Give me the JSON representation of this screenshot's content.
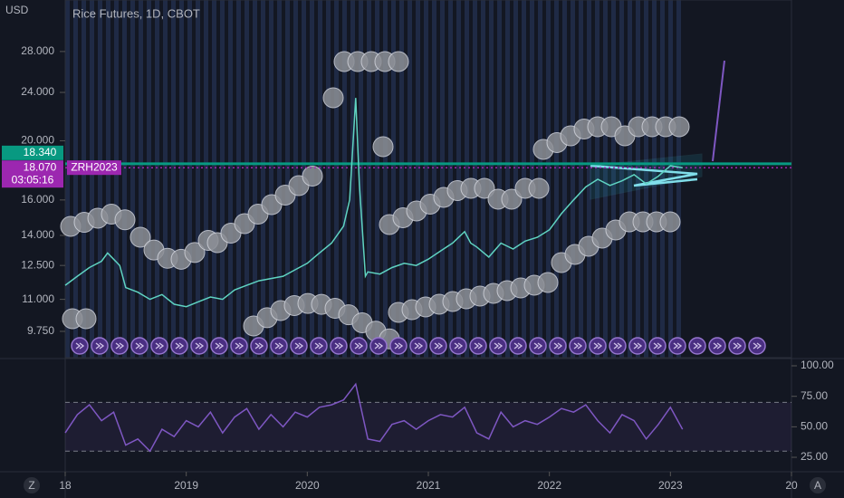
{
  "chart_data": [
    {
      "type": "line",
      "title": "Rice Futures, 1D, CBOT",
      "y_axis_label": "USD",
      "symbol": "ZRH2023",
      "countdown": "03:05:16",
      "log_scale": true,
      "color": "#5fd3c2",
      "x": [
        2018.0,
        2018.1,
        2018.2,
        2018.3,
        2018.35,
        2018.45,
        2018.5,
        2018.6,
        2018.7,
        2018.8,
        2018.9,
        2019.0,
        2019.1,
        2019.2,
        2019.3,
        2019.4,
        2019.5,
        2019.6,
        2019.7,
        2019.8,
        2019.9,
        2020.0,
        2020.1,
        2020.2,
        2020.3,
        2020.35,
        2020.4,
        2020.43,
        2020.45,
        2020.48,
        2020.5,
        2020.6,
        2020.7,
        2020.8,
        2020.9,
        2021.0,
        2021.1,
        2021.2,
        2021.3,
        2021.35,
        2021.4,
        2021.5,
        2021.6,
        2021.7,
        2021.8,
        2021.9,
        2022.0,
        2022.1,
        2022.2,
        2022.3,
        2022.4,
        2022.5,
        2022.6,
        2022.7,
        2022.8,
        2022.9,
        2023.0,
        2023.1
      ],
      "values": [
        11.6,
        12.0,
        12.4,
        12.7,
        13.1,
        12.5,
        11.5,
        11.3,
        11.0,
        11.2,
        10.8,
        10.7,
        10.9,
        11.1,
        11.0,
        11.4,
        11.6,
        11.8,
        11.9,
        12.0,
        12.3,
        12.6,
        13.1,
        13.6,
        14.5,
        16.0,
        23.5,
        17.0,
        14.8,
        12.0,
        12.2,
        12.1,
        12.4,
        12.6,
        12.5,
        12.8,
        13.2,
        13.6,
        14.2,
        13.6,
        13.4,
        12.9,
        13.6,
        13.3,
        13.7,
        13.9,
        14.3,
        15.2,
        16.0,
        16.8,
        17.3,
        16.9,
        17.2,
        17.6,
        17.0,
        17.5,
        18.2,
        18.07
      ],
      "price_lines": [
        {
          "value": 18.34,
          "label": "18.340",
          "color": "#089981"
        },
        {
          "value": 18.07,
          "label": "18.070",
          "color": "#9c27b0"
        }
      ],
      "xlim": [
        2018,
        2024
      ],
      "xticks": [
        {
          "value": 2018,
          "label": "18"
        },
        2019,
        2020,
        2021,
        2022,
        2023,
        {
          "value": 2024,
          "label": "20"
        }
      ],
      "ylim": [
        8.83,
        34.0
      ],
      "yticks": [
        {
          "value": 28,
          "label": "28.000"
        },
        {
          "value": 24,
          "label": "24.000"
        },
        {
          "value": 20,
          "label": "20.000"
        },
        {
          "value": 16,
          "label": "16.000"
        },
        {
          "value": 14,
          "label": "14.000"
        },
        {
          "value": 12.5,
          "label": "12.500"
        },
        {
          "value": 11,
          "label": "11.000"
        },
        {
          "value": 9.75,
          "label": "9.750"
        }
      ]
    },
    {
      "type": "line",
      "color": "#7e57c2",
      "x": [
        2018.0,
        2018.1,
        2018.2,
        2018.3,
        2018.4,
        2018.5,
        2018.6,
        2018.7,
        2018.8,
        2018.9,
        2019.0,
        2019.1,
        2019.2,
        2019.3,
        2019.4,
        2019.5,
        2019.6,
        2019.7,
        2019.8,
        2019.9,
        2020.0,
        2020.1,
        2020.2,
        2020.3,
        2020.4,
        2020.5,
        2020.6,
        2020.7,
        2020.8,
        2020.9,
        2021.0,
        2021.1,
        2021.2,
        2021.3,
        2021.4,
        2021.5,
        2021.6,
        2021.7,
        2021.8,
        2021.9,
        2022.0,
        2022.1,
        2022.2,
        2022.3,
        2022.4,
        2022.5,
        2022.6,
        2022.7,
        2022.8,
        2022.9,
        2023.0,
        2023.1
      ],
      "values": [
        45,
        60,
        68,
        55,
        62,
        35,
        40,
        30,
        48,
        42,
        55,
        50,
        62,
        45,
        58,
        65,
        48,
        60,
        50,
        62,
        58,
        66,
        68,
        72,
        85,
        40,
        38,
        52,
        55,
        48,
        55,
        60,
        58,
        66,
        45,
        40,
        62,
        50,
        55,
        52,
        58,
        65,
        62,
        68,
        55,
        45,
        60,
        55,
        40,
        52,
        66,
        48
      ],
      "bands": [
        30,
        70
      ],
      "xlim": [
        2018,
        2024
      ],
      "ylim": [
        13.9,
        105.2
      ],
      "yticks": [
        {
          "value": 100,
          "label": "100.00"
        },
        {
          "value": 75,
          "label": "75.00"
        },
        {
          "value": 50,
          "label": "50.00"
        },
        {
          "value": 25,
          "label": "25.00"
        }
      ]
    }
  ],
  "buttons": [
    "Z",
    "A"
  ]
}
